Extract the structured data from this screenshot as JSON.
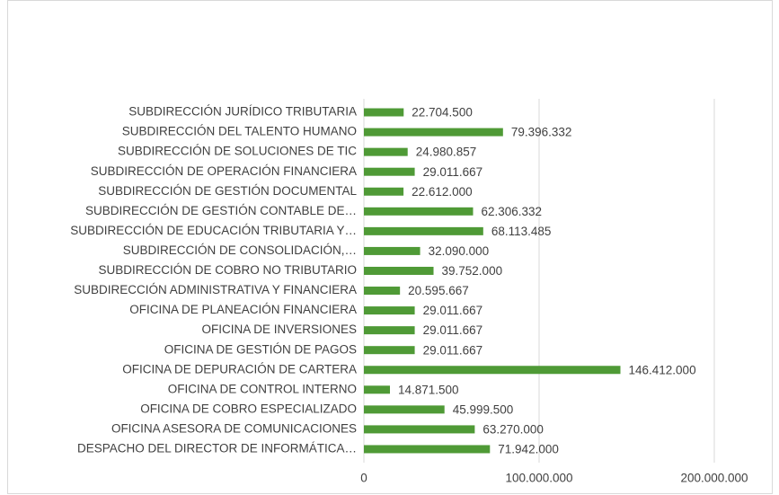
{
  "chart_data": {
    "type": "barh",
    "categories": [
      "SUBDIRECCIÓN JURÍDICO TRIBUTARIA",
      "SUBDIRECCIÓN DEL TALENTO HUMANO",
      "SUBDIRECCIÓN DE SOLUCIONES DE TIC",
      "SUBDIRECCIÓN DE OPERACIÓN FINANCIERA",
      "SUBDIRECCIÓN DE GESTIÓN DOCUMENTAL",
      "SUBDIRECCIÓN DE GESTIÓN CONTABLE DE…",
      "SUBDIRECCIÓN DE EDUCACIÓN TRIBUTARIA Y…",
      "SUBDIRECCIÓN DE CONSOLIDACIÓN,…",
      "SUBDIRECCIÓN DE COBRO NO TRIBUTARIO",
      "SUBDIRECCIÓN ADMINISTRATIVA Y FINANCIERA",
      "OFICINA DE PLANEACIÓN FINANCIERA",
      "OFICINA DE INVERSIONES",
      "OFICINA DE GESTIÓN DE PAGOS",
      "OFICINA DE DEPURACIÓN DE CARTERA",
      "OFICINA DE CONTROL INTERNO",
      "OFICINA DE COBRO ESPECIALIZADO",
      "OFICINA ASESORA DE COMUNICACIONES",
      "DESPACHO DEL DIRECTOR DE INFORMÁTICA…"
    ],
    "values": [
      22704500,
      79396332,
      24980857,
      29011667,
      22612000,
      62306332,
      68113485,
      32090000,
      39752000,
      20595667,
      29011667,
      29011667,
      29011667,
      146412000,
      14871500,
      45999500,
      63270000,
      71942000
    ],
    "value_labels": [
      "22.704.500",
      "79.396.332",
      "24.980.857",
      "29.011.667",
      "22.612.000",
      "62.306.332",
      "68.113.485",
      "32.090.000",
      "39.752.000",
      "20.595.667",
      "29.011.667",
      "29.011.667",
      "29.011.667",
      "146.412.000",
      "14.871.500",
      "45.999.500",
      "63.270.000",
      "71.942.000"
    ],
    "color": "#4f9a36",
    "xlim": [
      0,
      200000000
    ],
    "xticks": [
      0,
      {
        "value": 100000000,
        "label": "100.000.000"
      },
      {
        "value": 200000000,
        "label": "200.000.000"
      }
    ],
    "grid": true
  }
}
